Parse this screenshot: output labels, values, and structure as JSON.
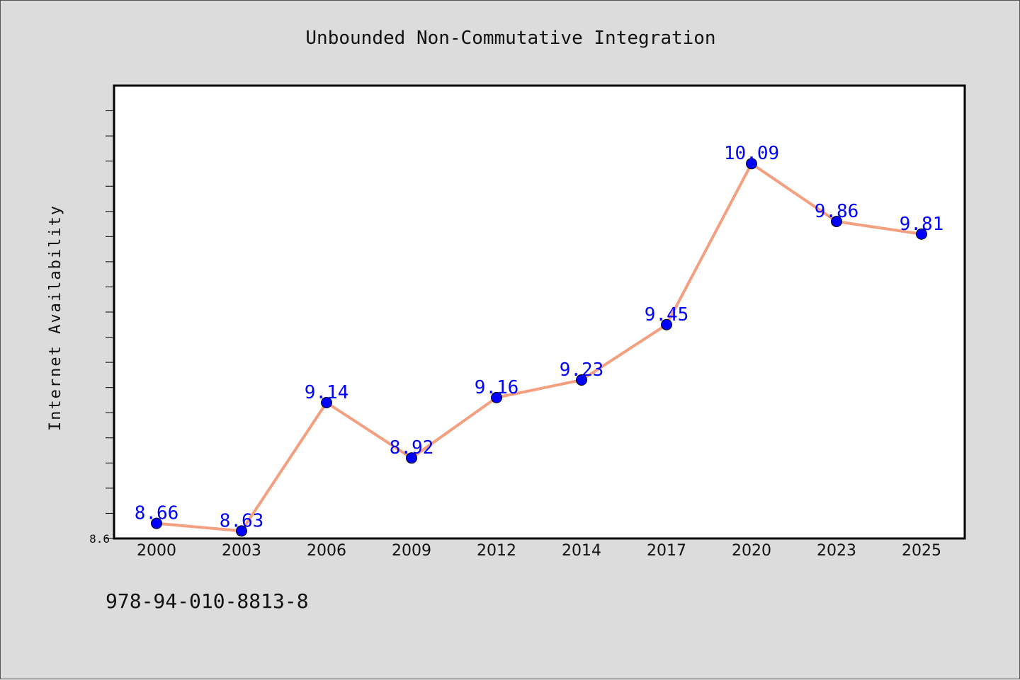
{
  "footer_code": "978-94-010-8813-8",
  "colors": {
    "background": "#dcdcdc",
    "plot_bg": "#ffffff",
    "line": "#f4a080",
    "marker": "#0000ff",
    "labels": "#0000ff"
  },
  "chart_data": {
    "type": "line",
    "title": "Unbounded Non-Commutative Integration",
    "xlabel": "",
    "ylabel": "Internet Availability",
    "categories": [
      "2000",
      "2003",
      "2006",
      "2009",
      "2012",
      "2014",
      "2017",
      "2020",
      "2023",
      "2025"
    ],
    "series": [
      {
        "values": [
          8.66,
          8.63,
          9.14,
          8.92,
          9.16,
          9.23,
          9.45,
          10.09,
          9.86,
          9.81
        ]
      }
    ],
    "data_labels": [
      "8.66",
      "8.63",
      "9.14",
      "8.92",
      "9.16",
      "9.23",
      "9.45",
      "10.09",
      "9.86",
      "9.81"
    ],
    "ylim": [
      8.6,
      10.4
    ],
    "y_tick_labels": [
      "8.6"
    ],
    "grid": false,
    "legend": "none"
  }
}
